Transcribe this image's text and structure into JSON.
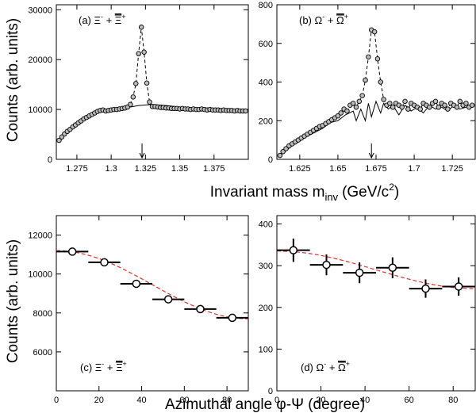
{
  "figure": {
    "top_ylabel": "Counts (arb. units)",
    "top_xlabel": "Invariant mass m",
    "top_xlabel_sub": "inv",
    "top_xlabel_unit": "(GeV/c",
    "top_xlabel_unit_sup": "2",
    "top_xlabel_close": ")",
    "bottom_ylabel": "Counts (arb. units)",
    "bottom_xlabel": "Azimuthal angle φ-Ψ (degree)"
  },
  "chart_data": [
    {
      "id": "a",
      "type": "scatter",
      "panel_label": "(a)",
      "legend": {
        "particle": "Ξ",
        "sign": "-",
        "plus": "+",
        "anti": "Ξ",
        "anti_sign": "+"
      },
      "xlim": [
        1.26,
        1.4
      ],
      "ylim": [
        0,
        31000
      ],
      "xticks": [
        1.275,
        1.3,
        1.325,
        1.35,
        1.375
      ],
      "xtick_labels": [
        "1.275",
        "1.3",
        "1.325",
        "1.35",
        "1.375"
      ],
      "yticks": [
        0,
        10000,
        20000,
        30000
      ],
      "ytick_labels": [
        "0",
        "10000",
        "20000",
        "30000"
      ],
      "arrow_x": 1.3225,
      "data": {
        "x": [
          1.262,
          1.264,
          1.266,
          1.268,
          1.27,
          1.272,
          1.274,
          1.276,
          1.278,
          1.28,
          1.282,
          1.284,
          1.286,
          1.288,
          1.29,
          1.292,
          1.294,
          1.296,
          1.298,
          1.3,
          1.302,
          1.304,
          1.306,
          1.308,
          1.31,
          1.312,
          1.314,
          1.316,
          1.318,
          1.32,
          1.322,
          1.324,
          1.326,
          1.328,
          1.33,
          1.332,
          1.334,
          1.336,
          1.338,
          1.34,
          1.342,
          1.344,
          1.346,
          1.348,
          1.35,
          1.352,
          1.354,
          1.356,
          1.358,
          1.36,
          1.362,
          1.364,
          1.366,
          1.368,
          1.37,
          1.372,
          1.374,
          1.376,
          1.378,
          1.38,
          1.382,
          1.384,
          1.386,
          1.388,
          1.39,
          1.392,
          1.394,
          1.396,
          1.398
        ],
        "y": [
          3800,
          4500,
          5100,
          5600,
          6000,
          6500,
          6900,
          7300,
          7700,
          8100,
          8400,
          8700,
          9000,
          9300,
          9600,
          9800,
          9900,
          9700,
          9800,
          9900,
          10000,
          10000,
          10100,
          10200,
          10300,
          10500,
          11000,
          12500,
          15200,
          21200,
          26500,
          21500,
          15300,
          11500,
          10600,
          10600,
          10500,
          10400,
          10400,
          10300,
          10300,
          10200,
          10200,
          10200,
          10100,
          10200,
          10100,
          10100,
          10000,
          10100,
          10000,
          10000,
          10100,
          10000,
          9900,
          10000,
          9900,
          9900,
          9900,
          9800,
          9900,
          9800,
          9800,
          9800,
          9700,
          9800,
          9700,
          9700,
          9700
        ]
      },
      "background": {
        "x": [
          1.262,
          1.27,
          1.28,
          1.29,
          1.3,
          1.31,
          1.32,
          1.33,
          1.34,
          1.35,
          1.36,
          1.37,
          1.38,
          1.39,
          1.398
        ],
        "y": [
          3800,
          6000,
          8100,
          9500,
          9900,
          10300,
          10800,
          11000,
          10800,
          10500,
          10300,
          10100,
          10000,
          9800,
          9700
        ]
      }
    },
    {
      "id": "b",
      "type": "scatter",
      "panel_label": "(b)",
      "legend": {
        "particle": "Ω",
        "sign": "-",
        "plus": "+",
        "anti": "Ω",
        "anti_sign": "+"
      },
      "xlim": [
        1.61,
        1.74
      ],
      "ylim": [
        0,
        800
      ],
      "xticks": [
        1.625,
        1.65,
        1.675,
        1.7,
        1.725
      ],
      "xtick_labels": [
        "1.625",
        "1.65",
        "1.675",
        "1.7",
        "1.725"
      ],
      "yticks": [
        0,
        200,
        400,
        600,
        800
      ],
      "ytick_labels": [
        "0",
        "200",
        "400",
        "600",
        "800"
      ],
      "arrow_x": 1.672,
      "data": {
        "x": [
          1.612,
          1.614,
          1.616,
          1.618,
          1.62,
          1.622,
          1.624,
          1.626,
          1.628,
          1.63,
          1.632,
          1.634,
          1.636,
          1.638,
          1.64,
          1.642,
          1.644,
          1.646,
          1.648,
          1.65,
          1.652,
          1.654,
          1.656,
          1.658,
          1.66,
          1.662,
          1.664,
          1.666,
          1.668,
          1.67,
          1.672,
          1.674,
          1.676,
          1.678,
          1.68,
          1.682,
          1.684,
          1.686,
          1.688,
          1.69,
          1.692,
          1.694,
          1.696,
          1.698,
          1.7,
          1.702,
          1.704,
          1.706,
          1.708,
          1.71,
          1.712,
          1.714,
          1.716,
          1.718,
          1.72,
          1.722,
          1.724,
          1.726,
          1.728,
          1.73,
          1.732,
          1.734,
          1.736,
          1.738
        ],
        "y": [
          20,
          40,
          55,
          70,
          80,
          90,
          100,
          110,
          120,
          130,
          140,
          150,
          160,
          170,
          175,
          185,
          195,
          205,
          215,
          225,
          240,
          260,
          250,
          280,
          290,
          270,
          300,
          330,
          410,
          530,
          670,
          660,
          520,
          400,
          310,
          280,
          290,
          270,
          290,
          280,
          270,
          300,
          260,
          290,
          280,
          270,
          260,
          290,
          280,
          270,
          290,
          300,
          270,
          290,
          280,
          260,
          290,
          280,
          270,
          300,
          280,
          290,
          270,
          280
        ]
      },
      "background": {
        "x": [
          1.612,
          1.62,
          1.63,
          1.64,
          1.645,
          1.65,
          1.655,
          1.66,
          1.662,
          1.665,
          1.668,
          1.67,
          1.672,
          1.675,
          1.678,
          1.68,
          1.683,
          1.686,
          1.69,
          1.694,
          1.698,
          1.702,
          1.706,
          1.71,
          1.714,
          1.718,
          1.722,
          1.726,
          1.73,
          1.734,
          1.738
        ],
        "y": [
          20,
          70,
          120,
          160,
          190,
          200,
          230,
          250,
          200,
          260,
          200,
          290,
          220,
          300,
          240,
          290,
          260,
          280,
          230,
          280,
          250,
          270,
          240,
          280,
          260,
          270,
          250,
          280,
          260,
          270,
          280
        ]
      }
    },
    {
      "id": "c",
      "type": "scatter",
      "panel_label": "(c)",
      "legend": {
        "particle": "Ξ",
        "sign": "-",
        "plus": "+",
        "anti": "Ξ",
        "anti_sign": "+"
      },
      "xlim": [
        0,
        90
      ],
      "ylim": [
        4000,
        13000
      ],
      "xticks": [
        0,
        20,
        40,
        60,
        80
      ],
      "xtick_labels": [
        "0",
        "20",
        "40",
        "60",
        "80"
      ],
      "yticks": [
        6000,
        8000,
        10000,
        12000
      ],
      "ytick_labels": [
        "6000",
        "8000",
        "10000",
        "12000"
      ],
      "data": {
        "x": [
          7.5,
          22.5,
          37.5,
          52.5,
          67.5,
          82.5
        ],
        "y": [
          11150,
          10600,
          9500,
          8700,
          8200,
          7750
        ],
        "yerr": [
          100,
          100,
          90,
          90,
          80,
          80
        ],
        "xerr": 7.5
      },
      "fit": {
        "amplitude": 11150,
        "v2_offset": 9450,
        "v2_amp": 1750
      }
    },
    {
      "id": "d",
      "type": "scatter",
      "panel_label": "(d)",
      "legend": {
        "particle": "Ω",
        "sign": "-",
        "plus": "+",
        "anti": "Ω",
        "anti_sign": "+"
      },
      "xlim": [
        0,
        90
      ],
      "ylim": [
        0,
        420
      ],
      "xticks": [
        0,
        20,
        40,
        60,
        80
      ],
      "xtick_labels": [
        "0",
        "20",
        "40",
        "60",
        "80"
      ],
      "yticks": [
        0,
        100,
        200,
        300,
        400
      ],
      "ytick_labels": [
        "0",
        "100",
        "200",
        "300",
        "400"
      ],
      "data": {
        "x": [
          7.5,
          22.5,
          37.5,
          52.5,
          67.5,
          82.5
        ],
        "y": [
          337,
          302,
          283,
          295,
          245,
          250
        ],
        "yerr": [
          28,
          25,
          25,
          25,
          22,
          22
        ],
        "xerr": 7.5
      },
      "fit": {
        "v2_offset": 290,
        "v2_amp": 45
      }
    }
  ]
}
